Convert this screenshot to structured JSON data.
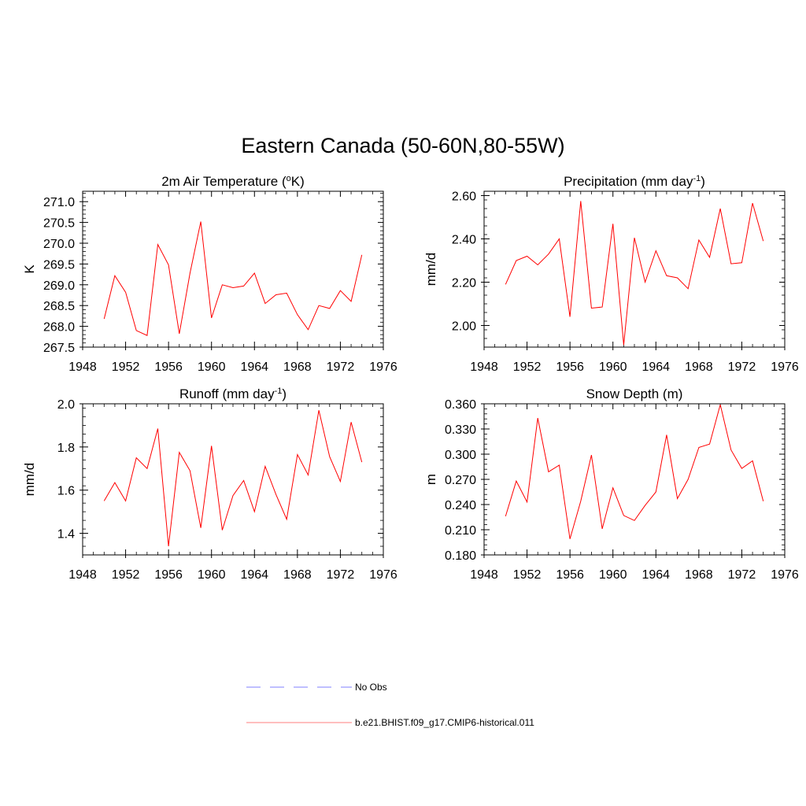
{
  "title": "Eastern Canada (50-60N,80-55W)",
  "legend": [
    {
      "label": "No Obs",
      "color": "#9999ff",
      "dash": true
    },
    {
      "label": "b.e21.BHIST.f09_g17.CMIP6-historical.011",
      "color": "#ff9999",
      "dash": false
    }
  ],
  "chart_data": [
    {
      "type": "line",
      "title_main": "2m Air Temperature (",
      "title_sup": "o",
      "title_tail": "K)",
      "ylabel": "K",
      "xlim": [
        1948,
        1976
      ],
      "xticks": [
        "1948",
        "1952",
        "1956",
        "1960",
        "1964",
        "1968",
        "1972",
        "1976"
      ],
      "ylim": [
        267.5,
        271.25
      ],
      "yticks": [
        "267.5",
        "268.0",
        "268.5",
        "269.0",
        "269.5",
        "270.0",
        "270.5",
        "271.0"
      ],
      "line_color": "#ff0000",
      "x": [
        1950,
        1951,
        1952,
        1953,
        1954,
        1955,
        1956,
        1957,
        1958,
        1959,
        1960,
        1961,
        1962,
        1963,
        1964,
        1965,
        1966,
        1967,
        1968,
        1969,
        1970,
        1971,
        1972,
        1973,
        1974
      ],
      "values": [
        268.18,
        269.22,
        268.82,
        267.9,
        267.78,
        269.97,
        269.48,
        267.82,
        269.28,
        270.52,
        268.2,
        269.0,
        268.93,
        268.97,
        269.28,
        268.55,
        268.76,
        268.8,
        268.28,
        267.92,
        268.5,
        268.43,
        268.86,
        268.6,
        269.72
      ]
    },
    {
      "type": "line",
      "title_main": "Precipitation (mm day",
      "title_sup": "-1",
      "title_tail": ")",
      "ylabel": "mm/d",
      "xlim": [
        1948,
        1976
      ],
      "xticks": [
        "1948",
        "1952",
        "1956",
        "1960",
        "1964",
        "1968",
        "1972",
        "1976"
      ],
      "ylim": [
        1.9,
        2.62
      ],
      "yticks": [
        "2.00",
        "2.20",
        "2.40",
        "2.60"
      ],
      "line_color": "#ff0000",
      "x": [
        1950,
        1951,
        1952,
        1953,
        1954,
        1955,
        1956,
        1957,
        1958,
        1959,
        1960,
        1961,
        1962,
        1963,
        1964,
        1965,
        1966,
        1967,
        1968,
        1969,
        1970,
        1971,
        1972,
        1973,
        1974
      ],
      "values": [
        2.19,
        2.3,
        2.32,
        2.28,
        2.33,
        2.4,
        2.04,
        2.575,
        2.08,
        2.085,
        2.47,
        1.91,
        2.405,
        2.2,
        2.345,
        2.23,
        2.22,
        2.17,
        2.395,
        2.315,
        2.54,
        2.285,
        2.29,
        2.565,
        2.39
      ]
    },
    {
      "type": "line",
      "title_main": "Runoff (mm day",
      "title_sup": "-1",
      "title_tail": ")",
      "ylabel": "mm/d",
      "xlim": [
        1948,
        1976
      ],
      "xticks": [
        "1948",
        "1952",
        "1956",
        "1960",
        "1964",
        "1968",
        "1972",
        "1976"
      ],
      "ylim": [
        1.3,
        2.0
      ],
      "yticks": [
        "1.4",
        "1.6",
        "1.8",
        "2.0"
      ],
      "line_color": "#ff0000",
      "x": [
        1950,
        1951,
        1952,
        1953,
        1954,
        1955,
        1956,
        1957,
        1958,
        1959,
        1960,
        1961,
        1962,
        1963,
        1964,
        1965,
        1966,
        1967,
        1968,
        1969,
        1970,
        1971,
        1972,
        1973,
        1974
      ],
      "values": [
        1.55,
        1.635,
        1.55,
        1.75,
        1.7,
        1.885,
        1.34,
        1.775,
        1.69,
        1.425,
        1.805,
        1.415,
        1.575,
        1.645,
        1.5,
        1.71,
        1.58,
        1.465,
        1.765,
        1.67,
        1.97,
        1.755,
        1.64,
        1.915,
        1.73
      ]
    },
    {
      "type": "line",
      "title_main": "Snow Depth (m)",
      "title_sup": "",
      "title_tail": "",
      "ylabel": "m",
      "xlim": [
        1948,
        1976
      ],
      "xticks": [
        "1948",
        "1952",
        "1956",
        "1960",
        "1964",
        "1968",
        "1972",
        "1976"
      ],
      "ylim": [
        0.18,
        0.36
      ],
      "yticks": [
        "0.180",
        "0.210",
        "0.240",
        "0.270",
        "0.300",
        "0.330",
        "0.360"
      ],
      "line_color": "#ff0000",
      "x": [
        1950,
        1951,
        1952,
        1953,
        1954,
        1955,
        1956,
        1957,
        1958,
        1959,
        1960,
        1961,
        1962,
        1963,
        1964,
        1965,
        1966,
        1967,
        1968,
        1969,
        1970,
        1971,
        1972,
        1973,
        1974
      ],
      "values": [
        0.226,
        0.268,
        0.243,
        0.343,
        0.279,
        0.287,
        0.199,
        0.244,
        0.299,
        0.211,
        0.26,
        0.227,
        0.221,
        0.239,
        0.255,
        0.323,
        0.247,
        0.27,
        0.308,
        0.312,
        0.359,
        0.305,
        0.283,
        0.292,
        0.244
      ]
    }
  ]
}
